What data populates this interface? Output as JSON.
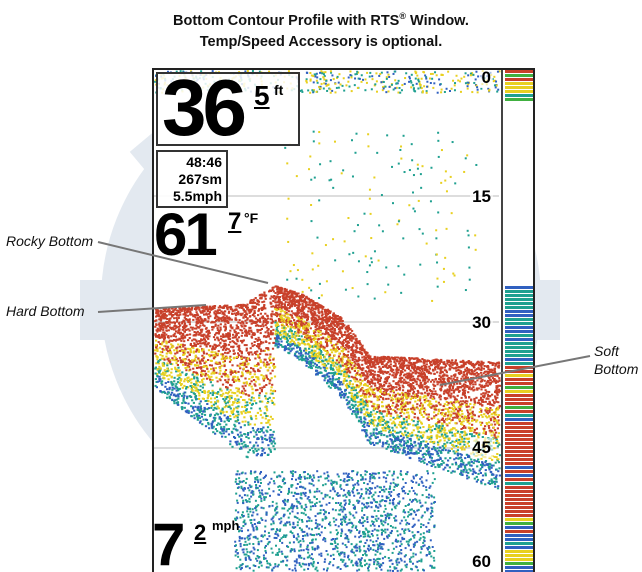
{
  "caption": {
    "line1_a": "Bottom Contour Profile with RTS",
    "line1_reg": "®",
    "line1_b": " Window.",
    "line2": "Temp/Speed Accessory is optional."
  },
  "readouts": {
    "depth_whole": "36",
    "depth_decimal": "5",
    "depth_unit": "ft",
    "time": "48:46",
    "distance": "267sm",
    "speed_small": "5.5mph",
    "temp_whole": "61",
    "temp_decimal": "7",
    "temp_unit": "°F",
    "speed_whole": "7",
    "speed_decimal": "2",
    "speed_unit": "mph"
  },
  "depth_scale": [
    "0",
    "15",
    "30",
    "45",
    "60"
  ],
  "callouts": {
    "rocky": "Rocky Bottom",
    "hard": "Hard Bottom",
    "soft_line1": "Soft",
    "soft_line2": "Bottom"
  },
  "colors": {
    "strong_return": "#c8402a",
    "medium_return": "#e8d020",
    "weak_return": "#1fa090",
    "faint_return": "#3060c0",
    "watermark": "#dfe6ee"
  }
}
